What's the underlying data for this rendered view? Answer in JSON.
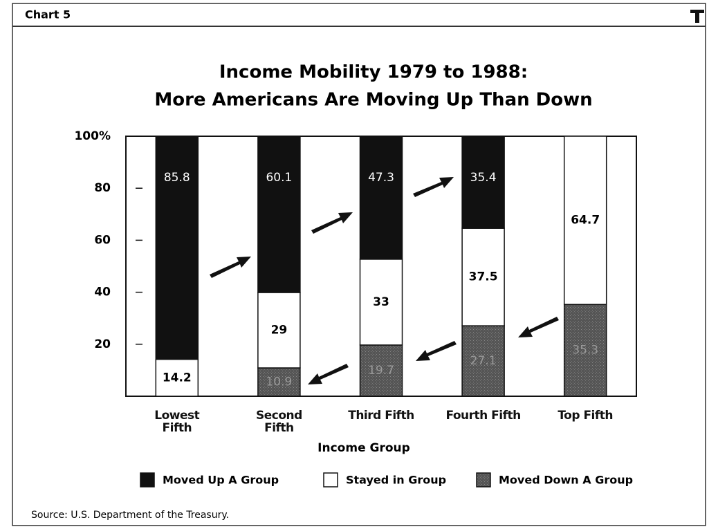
{
  "header": {
    "label": "Chart 5"
  },
  "chart_data": {
    "type": "stacked-bar",
    "title": "Income Mobility 1979 to 1988:",
    "subtitle": "More Americans Are Moving Up Than Down",
    "x_label": "Income Group",
    "categories": [
      "Lowest Fifth",
      "Second Fifth",
      "Third Fifth",
      "Fourth Fifth",
      "Top Fifth"
    ],
    "series": [
      {
        "name": "Moved Up A Group",
        "color": "#111111",
        "label_color": "#ffffff",
        "values": [
          85.8,
          60.1,
          47.3,
          35.4,
          null
        ]
      },
      {
        "name": "Stayed in Group",
        "color": "#ffffff",
        "label_color": "#000000",
        "values": [
          14.2,
          29,
          33,
          37.5,
          64.7
        ]
      },
      {
        "name": "Moved Down A Group",
        "color": "#555555",
        "label_color": "#9a9a9a",
        "values": [
          null,
          10.9,
          19.7,
          27.1,
          35.3
        ]
      }
    ],
    "ylim": [
      0,
      100
    ],
    "yticks": [
      20,
      40,
      60,
      80,
      {
        "value": 100,
        "label": "100%"
      }
    ],
    "source": "Source: U.S. Department of the Treasury."
  }
}
